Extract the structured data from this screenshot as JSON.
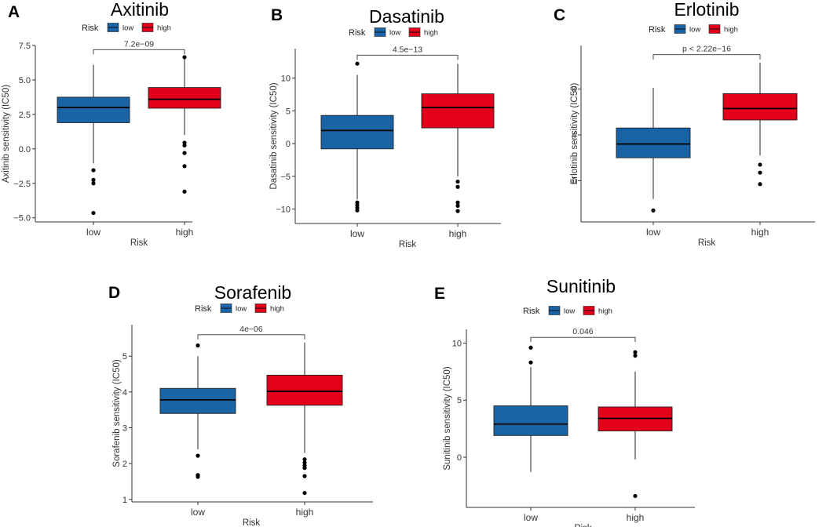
{
  "colors": {
    "low": "#1964a6",
    "high": "#e3001b",
    "axis": "#333333",
    "median": "#000000"
  },
  "chart_data": [
    {
      "type": "box",
      "panel": "A",
      "title": "Axitinib",
      "legend": {
        "title": "Risk",
        "entries": [
          "low",
          "high"
        ]
      },
      "xlabel": "Risk",
      "ylabel": "Axitinib sensitivity (IC50)",
      "categories": [
        "low",
        "high"
      ],
      "ylim": [
        -5.3,
        7.5
      ],
      "yticks": [
        -5.0,
        -2.5,
        0.0,
        2.5,
        5.0,
        7.5
      ],
      "ytick_labels": [
        "−5.0",
        "−2.5",
        "0.0",
        "2.5",
        "5.0",
        "7.5"
      ],
      "pvalue": "7.2e−09",
      "bracket_y": 7.2,
      "boxes": [
        {
          "group": "low",
          "q1": 1.9,
          "median": 3.0,
          "q3": 3.75,
          "whisker_low": -1.05,
          "whisker_high": 6.1,
          "outliers": [
            -1.55,
            -2.25,
            -2.5,
            -4.65
          ]
        },
        {
          "group": "high",
          "q1": 2.95,
          "median": 3.6,
          "q3": 4.45,
          "whisker_low": 1.0,
          "whisker_high": 6.55,
          "outliers": [
            6.65,
            0.45,
            0.25,
            -0.3,
            -1.25,
            -3.1
          ]
        }
      ]
    },
    {
      "type": "box",
      "panel": "B",
      "title": "Dasatinib",
      "legend": {
        "title": "Risk",
        "entries": [
          "low",
          "high"
        ]
      },
      "xlabel": "Risk",
      "ylabel": "Dasatinib sensitivity (IC50)",
      "categories": [
        "low",
        "high"
      ],
      "ylim": [
        -12.2,
        14.5
      ],
      "yticks": [
        -10,
        -5,
        0,
        5,
        10
      ],
      "ytick_labels": [
        "−10",
        "−5",
        "0",
        "5",
        "10"
      ],
      "pvalue": "4.5e−13",
      "bracket_y": 13.5,
      "boxes": [
        {
          "group": "low",
          "q1": -0.8,
          "median": 2.0,
          "q3": 4.3,
          "whisker_low": -8.5,
          "whisker_high": 10.5,
          "outliers": [
            12.2,
            -9.0,
            -9.4,
            -9.8,
            -10.2
          ]
        },
        {
          "group": "high",
          "q1": 2.4,
          "median": 5.5,
          "q3": 7.6,
          "whisker_low": -5.0,
          "whisker_high": 12.2,
          "outliers": [
            -5.8,
            -6.6,
            -9.0,
            -9.5,
            -10.3
          ]
        }
      ]
    },
    {
      "type": "box",
      "panel": "C",
      "title": "Erlotinib",
      "legend": {
        "title": "Risk",
        "entries": [
          "low",
          "high"
        ]
      },
      "xlabel": "Risk",
      "ylabel": "Erlotinib sensitivity (IC50)",
      "categories": [
        "low",
        "high"
      ],
      "ylim": [
        -3.6,
        11.8
      ],
      "yticks": [
        0,
        4,
        8
      ],
      "ytick_labels": [
        "0",
        "4",
        "8"
      ],
      "pvalue": "p < 2.22e−16",
      "bracket_y": 11.0,
      "boxes": [
        {
          "group": "low",
          "q1": 2.0,
          "median": 3.2,
          "q3": 4.6,
          "whisker_low": -1.6,
          "whisker_high": 8.1,
          "outliers": [
            -2.6
          ]
        },
        {
          "group": "high",
          "q1": 5.3,
          "median": 6.3,
          "q3": 7.6,
          "whisker_low": 2.2,
          "whisker_high": 10.3,
          "outliers": [
            1.4,
            0.7,
            -0.3
          ]
        }
      ]
    },
    {
      "type": "box",
      "panel": "D",
      "title": "Sorafenib",
      "legend": {
        "title": "Risk",
        "entries": [
          "low",
          "high"
        ]
      },
      "xlabel": "Risk",
      "ylabel": "Sorafenib sensitivity (IC50)",
      "categories": [
        "low",
        "high"
      ],
      "ylim": [
        0.93,
        5.88
      ],
      "yticks": [
        1,
        2,
        3,
        4,
        5
      ],
      "ytick_labels": [
        "1",
        "2",
        "3",
        "4",
        "5"
      ],
      "pvalue": "4e−06",
      "bracket_y": 5.6,
      "boxes": [
        {
          "group": "low",
          "q1": 3.4,
          "median": 3.78,
          "q3": 4.1,
          "whisker_low": 2.4,
          "whisker_high": 5.0,
          "outliers": [
            5.3,
            2.22,
            1.68,
            1.63
          ]
        },
        {
          "group": "high",
          "q1": 3.63,
          "median": 4.02,
          "q3": 4.47,
          "whisker_low": 2.3,
          "whisker_high": 5.38,
          "outliers": [
            2.12,
            2.03,
            1.95,
            1.88,
            1.65,
            1.18
          ]
        }
      ]
    },
    {
      "type": "box",
      "panel": "E",
      "title": "Sunitinib",
      "legend": {
        "title": "Risk",
        "entries": [
          "low",
          "high"
        ]
      },
      "xlabel": "Risk",
      "ylabel": "Sunitinib sensitivity (IC50)",
      "categories": [
        "low",
        "high"
      ],
      "ylim": [
        -4.4,
        11.2
      ],
      "yticks": [
        0,
        5,
        10
      ],
      "ytick_labels": [
        "0",
        "5",
        "10"
      ],
      "pvalue": "0.046",
      "bracket_y": 10.5,
      "boxes": [
        {
          "group": "low",
          "q1": 1.9,
          "median": 2.9,
          "q3": 4.5,
          "whisker_low": -1.3,
          "whisker_high": 7.9,
          "outliers": [
            9.6,
            8.3
          ]
        },
        {
          "group": "high",
          "q1": 2.3,
          "median": 3.4,
          "q3": 4.4,
          "whisker_low": -0.2,
          "whisker_high": 7.5,
          "outliers": [
            9.2,
            8.9,
            -3.4
          ]
        }
      ]
    }
  ]
}
